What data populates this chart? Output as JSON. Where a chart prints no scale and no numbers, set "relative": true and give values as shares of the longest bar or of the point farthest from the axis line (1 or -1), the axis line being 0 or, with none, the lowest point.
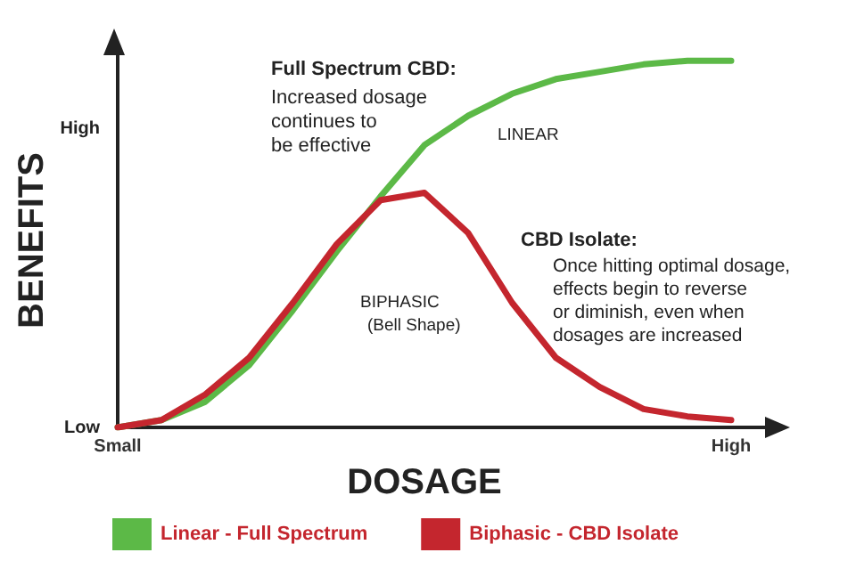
{
  "chart_data": {
    "type": "line",
    "relative": true,
    "xlabel": "DOSAGE",
    "ylabel": "BENEFITS",
    "categories": [
      "Small",
      null,
      null,
      null,
      null,
      null,
      null,
      null,
      null,
      null,
      null,
      null,
      null,
      null,
      "High"
    ],
    "series": [
      {
        "name": "Linear - Full Spectrum",
        "color": "#5cb947",
        "values": [
          0,
          0.02,
          0.07,
          0.17,
          0.32,
          0.48,
          0.63,
          0.77,
          0.85,
          0.91,
          0.95,
          0.97,
          0.99,
          1,
          1
        ]
      },
      {
        "name": "Biphasic - CBD Isolate",
        "color": "#c4262e",
        "values": [
          0,
          0.02,
          0.09,
          0.19,
          0.34,
          0.5,
          0.62,
          0.64,
          0.53,
          0.34,
          0.19,
          0.11,
          0.05,
          0.03,
          0.02
        ]
      }
    ],
    "annotations": [
      "Low",
      "High",
      "Full Spectrum CBD:",
      "Increased dosage\ncontinues to\nbe effective",
      "LINEAR",
      "BIPHASIC",
      "(Bell Shape)",
      "CBD Isolate:",
      "Once hitting optimal dosage,\neffects begin to reverse\nor diminish, even when\ndosages are increased"
    ],
    "legend": "bottom left",
    "grid": false,
    "marker": "none",
    "line_style": "solid"
  }
}
